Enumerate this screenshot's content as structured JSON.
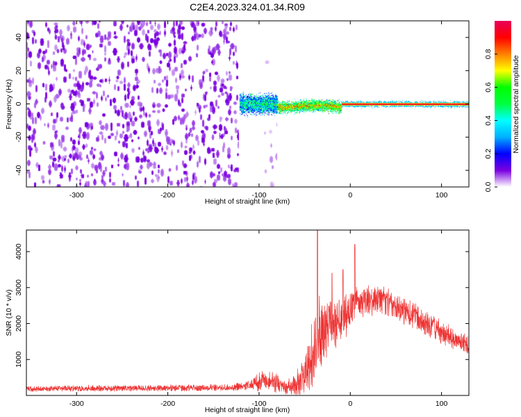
{
  "title": "C2E4.2023.324.01.34.R09",
  "chart_data": [
    {
      "type": "heatmap",
      "xlabel": "Height of straight line (km)",
      "ylabel": "Frequency (Hz)",
      "xlim": [
        -355,
        130
      ],
      "ylim": [
        -50,
        50
      ],
      "x_ticks": [
        -300,
        -200,
        -100,
        0,
        100
      ],
      "y_ticks": [
        -40,
        -20,
        0,
        20,
        40
      ],
      "colorbar": {
        "label": "Normalized spectral amplitude",
        "range": [
          0,
          1
        ],
        "ticks": [
          0.0,
          0.2,
          0.4,
          0.6,
          0.8
        ],
        "colors": [
          "#ffffff",
          "#7a00e0",
          "#0000ff",
          "#00b0ff",
          "#00ffff",
          "#00ff40",
          "#00ff00",
          "#ffff00",
          "#ff7f00",
          "#ff0000",
          "#e8005a"
        ]
      },
      "regions": [
        {
          "x_range": [
            -355,
            -122
          ],
          "freq_range": [
            -50,
            50
          ],
          "amplitude": 0.05,
          "description": "noise"
        },
        {
          "x_range": [
            -95,
            -80
          ],
          "freq_range": [
            -50,
            45
          ],
          "amplitude": 0.02
        },
        {
          "x_range": [
            -122,
            -80
          ],
          "freq_center": 0,
          "freq_halfwidth": 5,
          "amplitude": 0.45
        },
        {
          "x_range": [
            -80,
            -10
          ],
          "freq_center": -2,
          "freq_halfwidth": 3,
          "amplitude": 0.75
        },
        {
          "x_range": [
            -10,
            130
          ],
          "freq_center": 0,
          "freq_halfwidth": 1.5,
          "amplitude": 0.95
        }
      ]
    },
    {
      "type": "line",
      "xlabel": "Height of straight line (km)",
      "ylabel": "SNR (10 * v/v)",
      "xlim": [
        -355,
        130
      ],
      "ylim": [
        0,
        4600
      ],
      "x_ticks": [
        -300,
        -200,
        -100,
        0,
        100
      ],
      "y_ticks": [
        1000,
        2000,
        3000,
        4000
      ],
      "color": "#ee3333",
      "envelope_x": [
        -355,
        -300,
        -200,
        -130,
        -110,
        -95,
        -80,
        -70,
        -55,
        -45,
        -40,
        -35,
        -25,
        -10,
        0,
        10,
        20,
        30,
        40,
        60,
        80,
        100,
        115,
        130
      ],
      "envelope_mean": [
        180,
        200,
        210,
        220,
        280,
        420,
        350,
        200,
        350,
        900,
        1400,
        1600,
        1900,
        2100,
        2450,
        2550,
        2650,
        2650,
        2600,
        2350,
        2050,
        1800,
        1550,
        1400
      ],
      "envelope_amp": [
        90,
        100,
        110,
        110,
        160,
        350,
        300,
        200,
        500,
        800,
        1200,
        1300,
        900,
        700,
        700,
        500,
        450,
        450,
        450,
        400,
        400,
        380,
        350,
        300
      ],
      "spikes": [
        {
          "x": -36,
          "y": 4600
        },
        {
          "x": 5,
          "y": 4200
        },
        {
          "x": -8,
          "y": 3500
        },
        {
          "x": -20,
          "y": 3400
        }
      ]
    }
  ]
}
